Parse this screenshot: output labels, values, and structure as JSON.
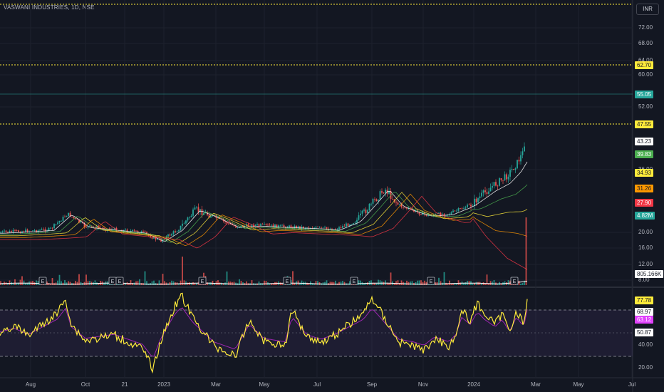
{
  "header": {
    "title": "VASWANI INDUSTRIES, 1D, NSE",
    "currency_button": "INR"
  },
  "price_axis": {
    "ticks": [
      "72.00",
      "68.00",
      "64.00",
      "60.00",
      "52.00",
      "36.00",
      "20.00",
      "16.00",
      "12.00",
      "8.00"
    ],
    "badges": [
      {
        "label": "62.70",
        "bg": "#ffeb3b",
        "fg": "#131722"
      },
      {
        "label": "55.05",
        "bg": "#26a69a",
        "fg": "#ffffff"
      },
      {
        "label": "47.55",
        "bg": "#ffeb3b",
        "fg": "#131722"
      },
      {
        "label": "43.23",
        "bg": "#ffffff",
        "fg": "#131722"
      },
      {
        "label": "39.83",
        "bg": "#4caf50",
        "fg": "#ffffff"
      },
      {
        "label": "34.93",
        "bg": "#ffeb3b",
        "fg": "#131722"
      },
      {
        "label": "31.26",
        "bg": "#ff9800",
        "fg": "#131722"
      },
      {
        "label": "27.90",
        "bg": "#f23645",
        "fg": "#ffffff"
      },
      {
        "label": "4.82M",
        "bg": "#26a69a",
        "fg": "#ffffff"
      },
      {
        "label": "805.166K",
        "bg": "#ffffff",
        "fg": "#131722"
      }
    ]
  },
  "rsi_axis": {
    "ticks": [
      "40.00",
      "20.00"
    ],
    "badges": [
      {
        "label": "77.78",
        "bg": "#ffeb3b",
        "fg": "#131722"
      },
      {
        "label": "68.97",
        "bg": "#ffffff",
        "fg": "#131722"
      },
      {
        "label": "63.12",
        "bg": "#e040fb",
        "fg": "#ffffff"
      },
      {
        "label": "50.87",
        "bg": "#ffffff",
        "fg": "#131722"
      }
    ]
  },
  "time_axis": [
    "Aug",
    "Oct",
    "21",
    "2023",
    "Mar",
    "May",
    "Jul",
    "Sep",
    "Nov",
    "2024",
    "Mar",
    "May",
    "Jul"
  ],
  "earnings_marker": "E",
  "colors": {
    "up": "#26a69a",
    "down": "#ef5350",
    "rsi": "#ffeb3b",
    "rsi_ma": "#9c27b0"
  }
}
